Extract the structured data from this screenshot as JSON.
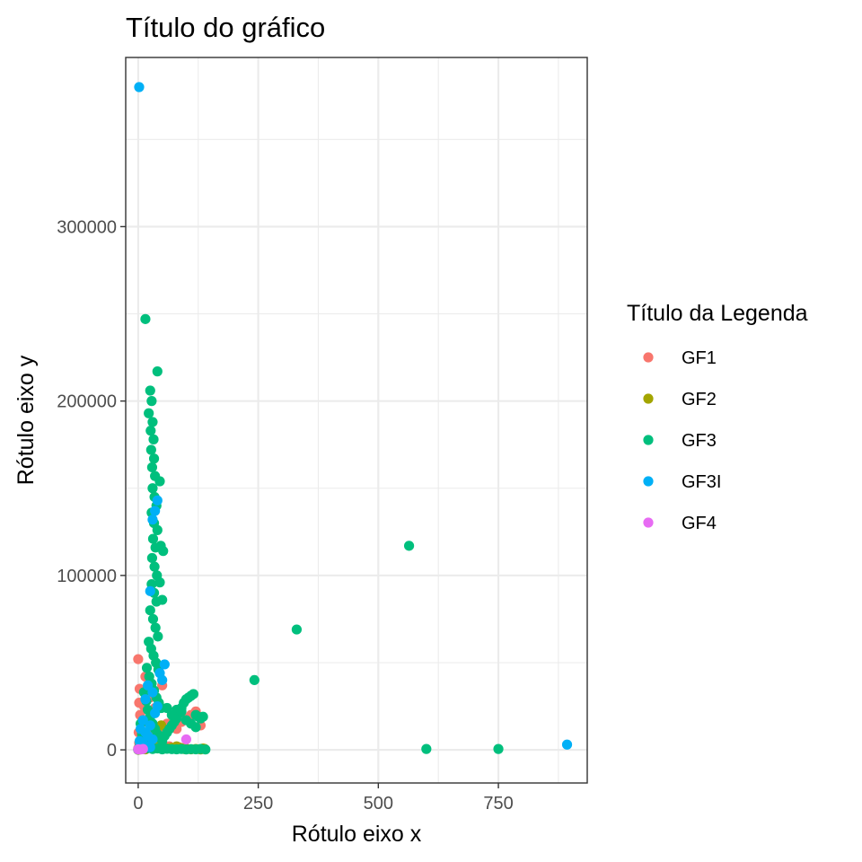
{
  "chart_data": {
    "type": "scatter",
    "title": "Título do gráfico",
    "xlabel": "Rótulo eixo x",
    "ylabel": "Rótulo eixo y",
    "xlim": [
      -26,
      935
    ],
    "ylim": [
      -19000,
      397000
    ],
    "x_ticks": [
      0,
      250,
      500,
      750
    ],
    "x_tick_labels": [
      "0",
      "250",
      "500",
      "750"
    ],
    "y_ticks": [
      0,
      100000,
      200000,
      300000
    ],
    "y_tick_labels": [
      "0",
      "100000",
      "200000",
      "300000"
    ],
    "grid": true,
    "legend": {
      "title": "Título da Legenda",
      "position": "right"
    },
    "series": [
      {
        "name": "GF1",
        "color": "#F8766D",
        "points": [
          [
            0,
            52000
          ],
          [
            3,
            35000
          ],
          [
            2,
            27000
          ],
          [
            1,
            10000
          ],
          [
            0,
            800
          ],
          [
            5,
            300
          ],
          [
            2,
            4000
          ],
          [
            4,
            20000
          ],
          [
            8,
            8000
          ],
          [
            10,
            3000
          ],
          [
            20,
            6000
          ],
          [
            30,
            9000
          ],
          [
            40,
            11000
          ],
          [
            45,
            12000
          ],
          [
            50,
            37000
          ],
          [
            60,
            15000
          ],
          [
            70,
            14000
          ],
          [
            80,
            12000
          ],
          [
            90,
            16000
          ],
          [
            100,
            18000
          ],
          [
            110,
            20000
          ],
          [
            120,
            22000
          ],
          [
            130,
            14000
          ],
          [
            50,
            1000
          ],
          [
            65,
            2000
          ],
          [
            85,
            1500
          ],
          [
            15,
            42000
          ],
          [
            25,
            30000
          ],
          [
            35,
            24000
          ],
          [
            2,
            500
          ],
          [
            6,
            15000
          ],
          [
            12,
            25000
          ]
        ]
      },
      {
        "name": "GF2",
        "color": "#A3A500",
        "points": [
          [
            0,
            0
          ],
          [
            8,
            1000
          ],
          [
            15,
            300
          ],
          [
            20,
            2000
          ],
          [
            30,
            1500
          ],
          [
            35,
            3000
          ],
          [
            50,
            500
          ],
          [
            60,
            800
          ],
          [
            70,
            1200
          ],
          [
            80,
            2000
          ],
          [
            90,
            1000
          ],
          [
            95,
            500
          ],
          [
            100,
            700
          ],
          [
            110,
            300
          ],
          [
            120,
            500
          ],
          [
            130,
            200
          ],
          [
            135,
            800
          ],
          [
            138,
            600
          ],
          [
            48,
            14000
          ],
          [
            40,
            6000
          ],
          [
            25,
            4000
          ]
        ]
      },
      {
        "name": "GF3",
        "color": "#00BF7D",
        "points": [
          [
            15,
            247000
          ],
          [
            40,
            217000
          ],
          [
            25,
            206000
          ],
          [
            28,
            200000
          ],
          [
            22,
            193000
          ],
          [
            30,
            188000
          ],
          [
            26,
            183000
          ],
          [
            32,
            178000
          ],
          [
            27,
            172000
          ],
          [
            33,
            167000
          ],
          [
            29,
            162000
          ],
          [
            35,
            157000
          ],
          [
            45,
            154000
          ],
          [
            30,
            150000
          ],
          [
            34,
            145000
          ],
          [
            38,
            140000
          ],
          [
            28,
            136000
          ],
          [
            33,
            130000
          ],
          [
            40,
            126000
          ],
          [
            31,
            121000
          ],
          [
            36,
            116000
          ],
          [
            52,
            114000
          ],
          [
            47,
            117000
          ],
          [
            29,
            110000
          ],
          [
            34,
            105000
          ],
          [
            39,
            100000
          ],
          [
            45,
            96000
          ],
          [
            28,
            95000
          ],
          [
            33,
            90000
          ],
          [
            38,
            85000
          ],
          [
            50,
            86000
          ],
          [
            25,
            80000
          ],
          [
            31,
            75000
          ],
          [
            36,
            70000
          ],
          [
            41,
            65000
          ],
          [
            22,
            62000
          ],
          [
            27,
            58000
          ],
          [
            32,
            54000
          ],
          [
            37,
            50000
          ],
          [
            42,
            46000
          ],
          [
            18,
            47000
          ],
          [
            23,
            42000
          ],
          [
            28,
            38000
          ],
          [
            33,
            34000
          ],
          [
            38,
            30000
          ],
          [
            43,
            27000
          ],
          [
            48,
            24000
          ],
          [
            12,
            33000
          ],
          [
            17,
            28000
          ],
          [
            20,
            23000
          ],
          [
            25,
            19000
          ],
          [
            30,
            15000
          ],
          [
            35,
            12000
          ],
          [
            40,
            9000
          ],
          [
            45,
            7000
          ],
          [
            50,
            5000
          ],
          [
            55,
            8000
          ],
          [
            60,
            10000
          ],
          [
            65,
            12000
          ],
          [
            70,
            14000
          ],
          [
            75,
            16000
          ],
          [
            80,
            18000
          ],
          [
            85,
            21000
          ],
          [
            90,
            24000
          ],
          [
            95,
            27000
          ],
          [
            100,
            29000
          ],
          [
            105,
            30000
          ],
          [
            110,
            31000
          ],
          [
            115,
            32000
          ],
          [
            120,
            20000
          ],
          [
            125,
            19000
          ],
          [
            130,
            18000
          ],
          [
            135,
            19000
          ],
          [
            60,
            24000
          ],
          [
            70,
            20000
          ],
          [
            80,
            23000
          ],
          [
            90,
            22000
          ],
          [
            100,
            17000
          ],
          [
            110,
            15000
          ],
          [
            120,
            13000
          ],
          [
            5,
            15000
          ],
          [
            8,
            9000
          ],
          [
            10,
            5000
          ],
          [
            3,
            2000
          ],
          [
            10,
            500
          ],
          [
            20,
            1000
          ],
          [
            30,
            500
          ],
          [
            40,
            800
          ],
          [
            50,
            300
          ],
          [
            60,
            600
          ],
          [
            70,
            400
          ],
          [
            80,
            300
          ],
          [
            90,
            500
          ],
          [
            100,
            200
          ],
          [
            110,
            400
          ],
          [
            120,
            300
          ],
          [
            130,
            500
          ],
          [
            140,
            200
          ],
          [
            564,
            117000
          ],
          [
            330,
            69000
          ],
          [
            242,
            40000
          ],
          [
            600,
            500
          ],
          [
            750,
            500
          ]
        ]
      },
      {
        "name": "GF3I",
        "color": "#00B0F6",
        "points": [
          [
            2,
            380000
          ],
          [
            40,
            143000
          ],
          [
            35,
            137000
          ],
          [
            30,
            132000
          ],
          [
            25,
            91000
          ],
          [
            55,
            49000
          ],
          [
            45,
            44000
          ],
          [
            50,
            40000
          ],
          [
            20,
            37000
          ],
          [
            30,
            33000
          ],
          [
            15,
            29000
          ],
          [
            40,
            25000
          ],
          [
            35,
            21000
          ],
          [
            10,
            17000
          ],
          [
            25,
            14000
          ],
          [
            5,
            12000
          ],
          [
            15,
            10000
          ],
          [
            20,
            8000
          ],
          [
            30,
            6000
          ],
          [
            3,
            5000
          ],
          [
            8,
            4000
          ],
          [
            12,
            3000
          ],
          [
            18,
            2000
          ],
          [
            25,
            1500
          ],
          [
            2,
            1000
          ],
          [
            0,
            200
          ],
          [
            893,
            3000
          ]
        ]
      },
      {
        "name": "GF4",
        "color": "#E76BF3",
        "points": [
          [
            100,
            6000
          ],
          [
            0,
            300
          ],
          [
            5,
            200
          ],
          [
            10,
            500
          ]
        ]
      }
    ]
  }
}
